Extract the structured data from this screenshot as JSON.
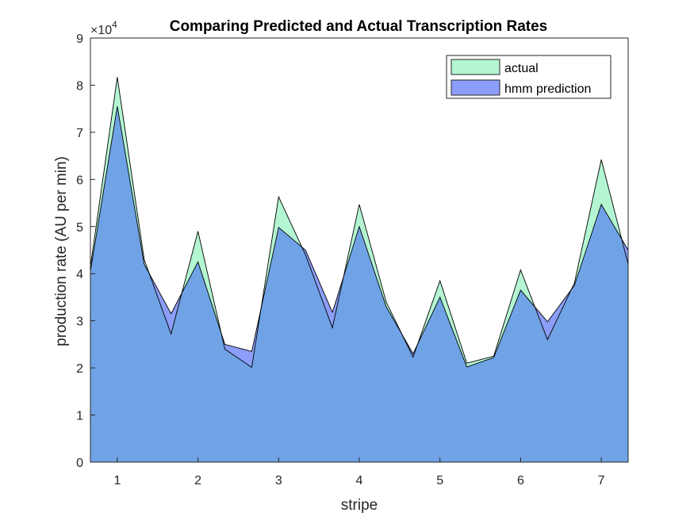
{
  "chart_data": {
    "type": "area",
    "title": "Comparing Predicted and Actual Transcription Rates",
    "xlabel": "stripe",
    "ylabel": "production rate (AU per min)",
    "y_exponent_label": "×10",
    "y_exponent": "4",
    "xlim": [
      0.6667,
      7.3333
    ],
    "ylim": [
      0,
      90000
    ],
    "x_ticks": [
      1,
      2,
      3,
      4,
      5,
      6,
      7
    ],
    "y_ticks": [
      0,
      10000,
      20000,
      30000,
      40000,
      50000,
      60000,
      70000,
      80000,
      90000
    ],
    "x_tick_labels": [
      "1",
      "2",
      "3",
      "4",
      "5",
      "6",
      "7"
    ],
    "y_tick_labels": [
      "0",
      "1",
      "2",
      "3",
      "4",
      "5",
      "6",
      "7",
      "8",
      "9"
    ],
    "x": [
      0.6667,
      1.0,
      1.3333,
      1.6667,
      2.0,
      2.3333,
      2.6667,
      3.0,
      3.3333,
      3.6667,
      4.0,
      4.3333,
      4.6667,
      5.0,
      5.3333,
      5.6667,
      6.0,
      6.3333,
      6.6667,
      7.0,
      7.3333
    ],
    "series": [
      {
        "name": "actual",
        "color": "#b4f5d2",
        "values": [
          41500,
          81700,
          43000,
          27200,
          49000,
          24000,
          20100,
          56300,
          44000,
          28500,
          54700,
          34000,
          22300,
          38500,
          21000,
          22500,
          40800,
          26000,
          38000,
          64200,
          42000
        ]
      },
      {
        "name": "hmm prediction",
        "color": "#8c9dfa",
        "values": [
          40500,
          75500,
          42000,
          31500,
          42500,
          25000,
          23500,
          49800,
          45000,
          31800,
          50000,
          33000,
          23000,
          35000,
          20200,
          22200,
          36500,
          29800,
          37500,
          54700,
          45000
        ]
      }
    ],
    "overlap_color": "#70a3e6",
    "legend_placement": "top-right",
    "grid": false
  }
}
